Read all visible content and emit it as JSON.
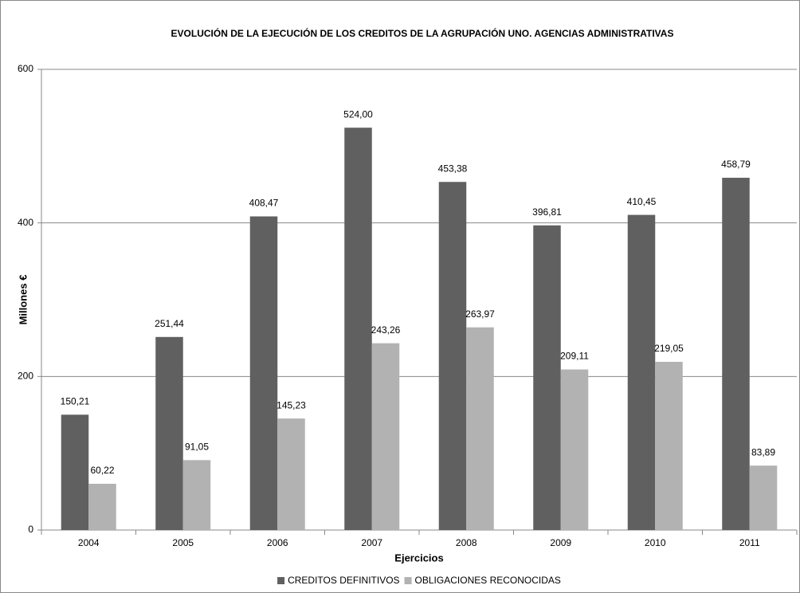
{
  "chart_data": {
    "type": "bar",
    "title": "EVOLUCIÓN DE LA EJECUCIÓN DE LOS CREDITOS DE LA AGRUPACIÓN UNO. AGENCIAS ADMINISTRATIVAS",
    "x_label": "Ejercicios",
    "y_label": "Millones  €",
    "categories": [
      "2004",
      "2005",
      "2006",
      "2007",
      "2008",
      "2009",
      "2010",
      "2011"
    ],
    "series": [
      {
        "name": "CREDITOS DEFINITIVOS",
        "color": "#606060",
        "values": [
          150.21,
          251.44,
          408.47,
          524.0,
          453.38,
          396.81,
          410.45,
          458.79
        ],
        "value_labels": [
          "150,21",
          "251,44",
          "408,47",
          "524,00",
          "453,38",
          "396,81",
          "410,45",
          "458,79"
        ]
      },
      {
        "name": "OBLIGACIONES RECONOCIDAS",
        "color": "#b2b2b2",
        "values": [
          60.22,
          91.05,
          145.23,
          243.26,
          263.97,
          209.11,
          219.05,
          83.89
        ],
        "value_labels": [
          "60,22",
          "91,05",
          "145,23",
          "243,26",
          "263,97",
          "209,11",
          "219,05",
          "83,89"
        ]
      }
    ],
    "ylim": [
      0,
      600
    ],
    "yticks": [
      0,
      200,
      400,
      600
    ],
    "grid": true,
    "legend": "bottom"
  }
}
